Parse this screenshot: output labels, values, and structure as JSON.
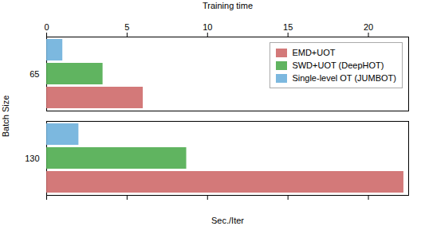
{
  "chart_data": {
    "type": "bar",
    "orientation": "horizontal",
    "categories": [
      "65",
      "130"
    ],
    "series": [
      {
        "name": "EMD+UOT",
        "color": "#cd6666",
        "values": [
          6.0,
          22.2
        ]
      },
      {
        "name": "SWD+UOT (DeepHOT)",
        "color": "#4aaa4a",
        "values": [
          3.5,
          8.7
        ]
      },
      {
        "name": "Single-level OT (JUMBOT)",
        "color": "#6aaedb",
        "values": [
          1.0,
          2.0
        ]
      }
    ],
    "xlabel": "Sec./Iter",
    "ylabel": "Batch Size",
    "x2label": "Training time",
    "xlim": [
      0,
      22.5
    ],
    "xticks": [
      0,
      5,
      10,
      15,
      20
    ],
    "legend": "upper right"
  }
}
